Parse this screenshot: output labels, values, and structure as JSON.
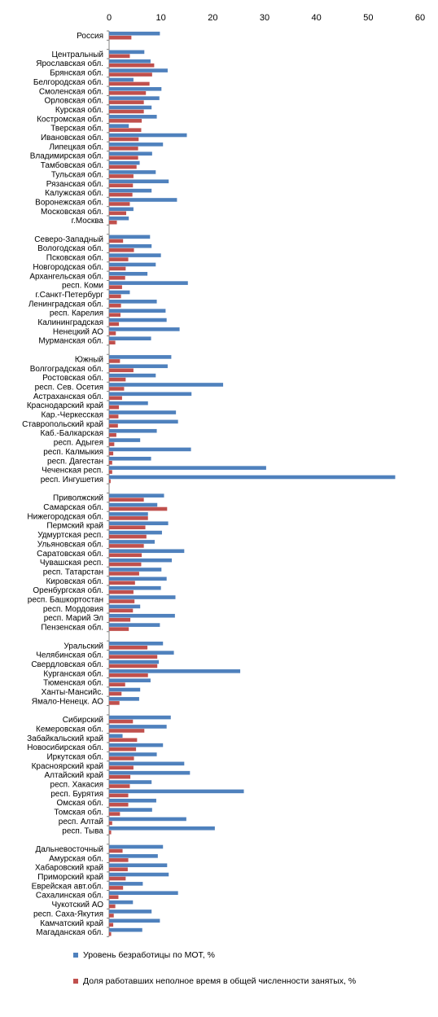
{
  "chart_data": {
    "type": "bar",
    "orientation": "horizontal",
    "xlim": [
      0,
      60
    ],
    "x_ticks": [
      "0",
      "10",
      "20",
      "30",
      "40",
      "50",
      "60"
    ],
    "grid": false,
    "legend_position": "bottom",
    "categories": [
      "Россия",
      "",
      "Центральный",
      "Ярославская обл.",
      "Брянская обл.",
      "Белгородская обл.",
      "Смоленская обл.",
      "Орловская обл.",
      "Курская обл.",
      "Костромская обл.",
      "Тверская обл.",
      "Ивановская обл.",
      "Липецкая обл.",
      "Владимирская обл.",
      "Тамбовская обл.",
      "Тульская обл.",
      "Рязанская обл.",
      "Калужская обл.",
      "Воронежская обл.",
      "Московская обл.",
      "г.Москва",
      "",
      "Северо-Западный",
      "Вологодская обл.",
      "Псковская обл.",
      "Новгородская обл.",
      "Архангельская обл.",
      "респ. Коми",
      "г.Санкт-Петербург",
      "Ленинградская обл.",
      "респ. Карелия",
      "Калининградская",
      "Ненецкий АО",
      "Мурманская обл.",
      "",
      "Южный",
      "Волгоградская обл.",
      "Ростовская обл.",
      "респ. Сев. Осетия",
      "Астраханская обл.",
      "Краснодарский край",
      "Кар.-Черкесская",
      "Ставропольский край",
      "Каб.-Балкарская",
      "респ. Адыгея",
      "респ. Калмыкия",
      "респ. Дагестан",
      "Чеченская респ.",
      "респ. Ингушетия",
      "",
      "Приволжский",
      "Самарская обл.",
      "Нижегородская обл.",
      "Пермский край",
      "Удмуртская респ.",
      "Ульяновская обл.",
      "Саратовская обл.",
      "Чувашская респ.",
      "респ. Татарстан",
      "Кировская обл.",
      "Оренбургская обл.",
      "респ. Башкортостан",
      "респ. Мордовия",
      "респ. Марий Эл",
      "Пензенская обл.",
      "",
      "Уральский",
      "Челябинская обл.",
      "Свердловская обл.",
      "Курганская обл.",
      "Тюменская обл.",
      "Ханты-Мансийс.",
      "Ямало-Ненецк. АО",
      "",
      "Сибирский",
      "Кемеровская обл.",
      "Забайкальский край",
      "Новосибирская обл.",
      "Иркутская обл.",
      "Красноярский край",
      "Алтайский край",
      "респ. Хакасия",
      "респ. Бурятия",
      "Омская обл.",
      "Томская обл.",
      "респ. Алтай",
      "респ. Тыва",
      "",
      "Дальневосточный",
      "Амурская обл.",
      "Хабаровский край",
      "Приморский край",
      "Еврейская авт.обл.",
      "Сахалинская обл.",
      "Чукотский АО",
      "респ. Саха-Якутия",
      "Камчатский край",
      "Магаданская обл."
    ],
    "series": [
      {
        "name": "Уровень безработицы по МОТ, %",
        "color": "#4F81BD",
        "values": [
          9.8,
          null,
          6.8,
          8,
          11.3,
          4.7,
          10.1,
          9.7,
          8.2,
          9.2,
          3.8,
          15,
          10.4,
          8.3,
          5.9,
          9,
          11.5,
          8.2,
          13.1,
          4.7,
          3.8,
          null,
          7.9,
          8.2,
          10,
          9,
          7.4,
          15.2,
          4,
          9.2,
          10.9,
          11.1,
          13.6,
          8.1,
          null,
          12,
          11.3,
          9,
          22,
          15.9,
          7.5,
          12.9,
          13.3,
          9.2,
          6,
          15.8,
          8.1,
          30.3,
          55.2,
          null,
          10.6,
          9.3,
          7.5,
          11.4,
          10.2,
          8.8,
          14.5,
          12.1,
          10.1,
          11.1,
          10,
          12.8,
          6,
          12.7,
          9.8,
          null,
          10.4,
          12.5,
          9.6,
          25.3,
          8,
          6,
          5.8,
          null,
          11.9,
          11.1,
          2.6,
          10.4,
          9.2,
          14.5,
          15.6,
          8.2,
          26,
          9.1,
          8.3,
          14.9,
          20.4,
          null,
          10.4,
          9.4,
          11.2,
          11.5,
          6.5,
          13.3,
          4.6,
          8.2,
          9.8,
          6.4
        ]
      },
      {
        "name": "Доля работавших неполное время в общей численности занятых, %",
        "color": "#C0504D",
        "values": [
          4.3,
          null,
          4,
          8.7,
          8.3,
          7.8,
          7.1,
          6.7,
          6.7,
          6.3,
          6.2,
          5.7,
          5.6,
          5.6,
          5.3,
          4.7,
          4.6,
          4.5,
          4,
          3.3,
          1.5,
          null,
          2.7,
          4.8,
          3.7,
          3.2,
          3.1,
          2.5,
          2.3,
          2.3,
          2.2,
          1.9,
          1.3,
          1.2,
          null,
          2.1,
          4.7,
          3.2,
          2.9,
          2.5,
          1.9,
          1.8,
          1.7,
          1.4,
          1,
          0.8,
          0.6,
          0.6,
          0.3,
          null,
          6.7,
          11.2,
          7.5,
          7,
          7.2,
          6.7,
          6.3,
          6.2,
          5.8,
          5,
          4.7,
          4.9,
          4.6,
          4.1,
          3.8,
          null,
          7.4,
          9.3,
          9.3,
          7.5,
          3.1,
          2.4,
          2,
          null,
          4.6,
          6.8,
          5.4,
          5.2,
          4.8,
          4.7,
          4.1,
          4,
          3.7,
          3.7,
          2.1,
          0.6,
          0.4,
          null,
          2.6,
          3.7,
          3.6,
          3.2,
          2.7,
          1.8,
          1.2,
          0.9,
          0.8,
          0.4
        ]
      }
    ]
  }
}
